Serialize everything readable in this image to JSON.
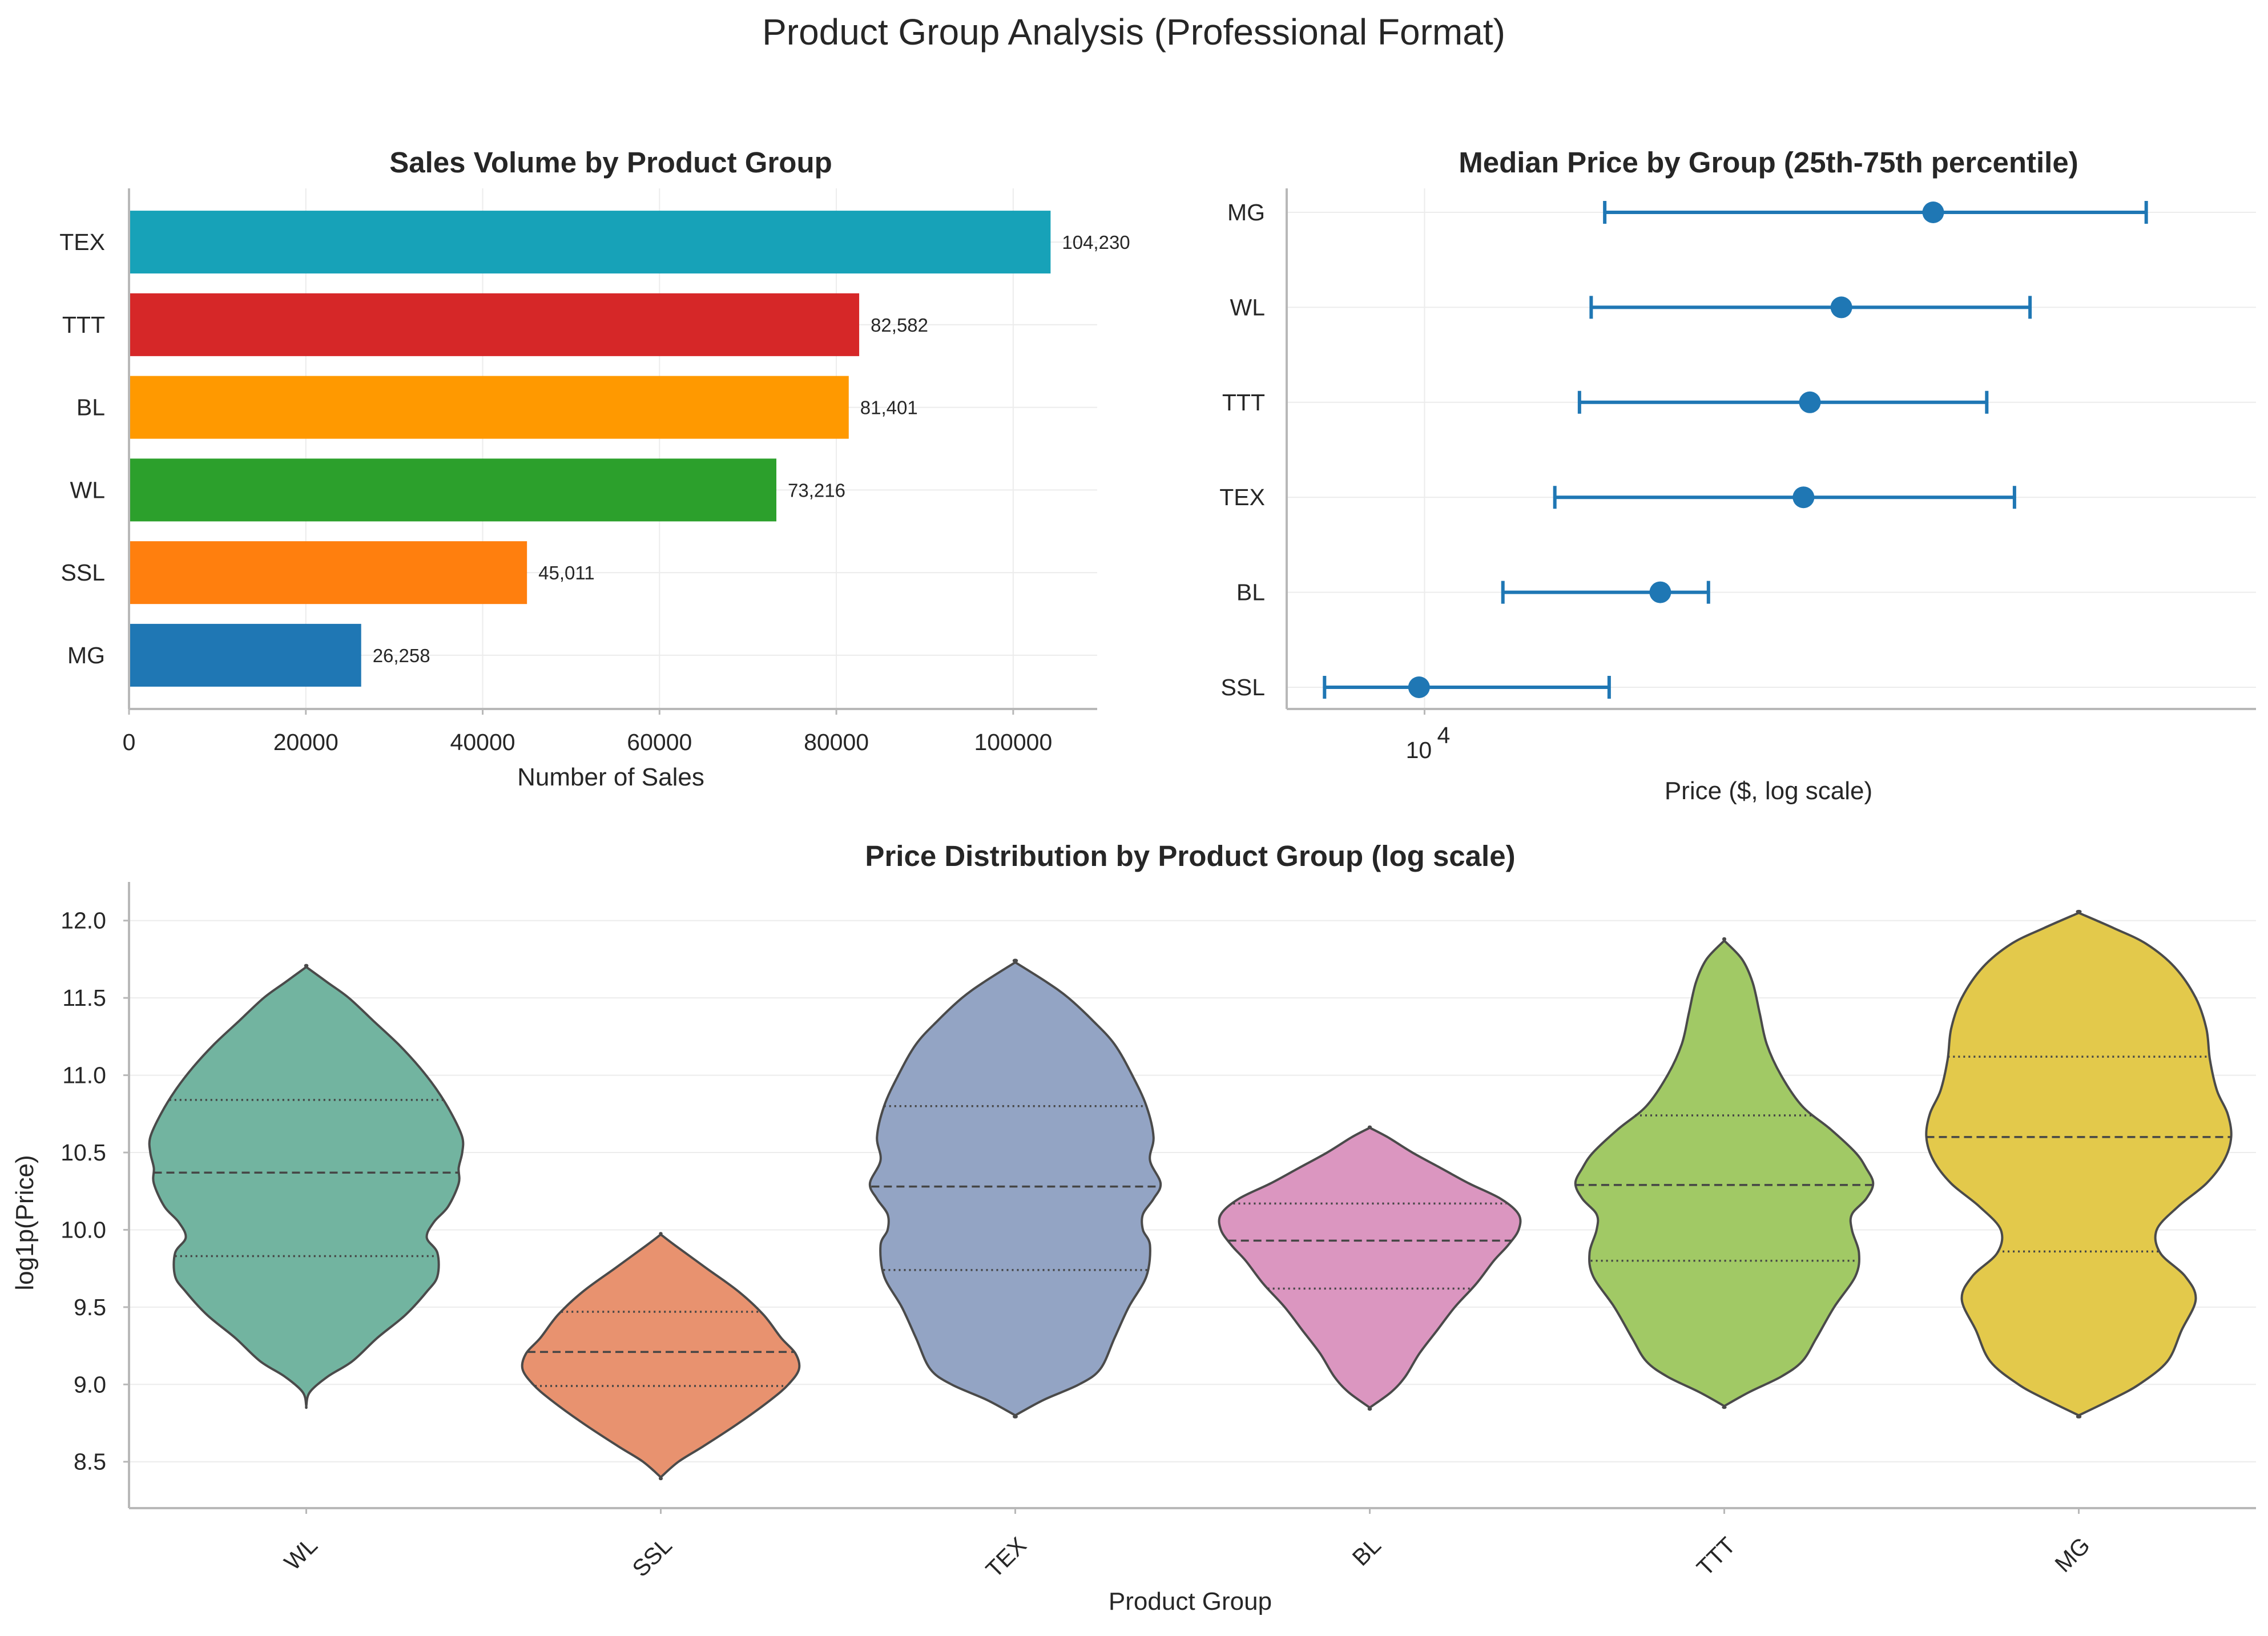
{
  "figure": {
    "suptitle": "Product Group Analysis (Professional Format)"
  },
  "chart_data": [
    {
      "type": "bar",
      "orientation": "horizontal",
      "title": "Sales Volume by Product Group",
      "xlabel": "Number of Sales",
      "ylabel": "",
      "categories": [
        "TEX",
        "TTT",
        "BL",
        "WL",
        "SSL",
        "MG"
      ],
      "values": [
        104230,
        82582,
        81401,
        73216,
        45011,
        26258
      ],
      "value_labels": [
        "104,230",
        "82,582",
        "81,401",
        "73,216",
        "45,011",
        "26,258"
      ],
      "colors": [
        "#17a2b8",
        "#d62728",
        "#ff9900",
        "#2ca02c",
        "#ff7f0e",
        "#1f77b4"
      ],
      "xlim": [
        0,
        109500
      ],
      "xticks": [
        0,
        20000,
        40000,
        60000,
        80000,
        100000
      ],
      "xtick_labels": [
        "0",
        "20000",
        "40000",
        "60000",
        "80000",
        "100000"
      ],
      "grid": true
    },
    {
      "type": "errorbar",
      "title": "Median Price by Group (25th-75th percentile)",
      "xlabel": "Price ($, log scale)",
      "ylabel": "",
      "x_scale": "log",
      "categories": [
        "MG",
        "WL",
        "TTT",
        "TEX",
        "BL",
        "SSL"
      ],
      "median": [
        40400,
        31400,
        28800,
        28300,
        19100,
        9850
      ],
      "q25": [
        16400,
        15800,
        15300,
        14300,
        12400,
        7600
      ],
      "q75": [
        72500,
        52700,
        46800,
        50500,
        21800,
        16600
      ],
      "xlim": [
        6850,
        98000
      ],
      "xticks": [
        10000
      ],
      "xtick_labels": [
        "10",
        "4"
      ],
      "color": "#1f77b4",
      "grid": true
    },
    {
      "type": "violin",
      "title": "Price Distribution by Product Group (log scale)",
      "xlabel": "Product Group",
      "ylabel": "log1p(Price)",
      "categories": [
        "WL",
        "SSL",
        "TEX",
        "BL",
        "TTT",
        "MG"
      ],
      "colors": [
        "#72b4a0",
        "#e8926f",
        "#93a4c4",
        "#db96c0",
        "#a1c965",
        "#e3c94b"
      ],
      "ylim": [
        8.2,
        12.25
      ],
      "yticks": [
        8.5,
        9.0,
        9.5,
        10.0,
        10.5,
        11.0,
        11.5,
        12.0
      ],
      "ytick_labels": [
        "8.5",
        "9.0",
        "9.5",
        "10.0",
        "10.5",
        "11.0",
        "11.5",
        "12.0"
      ],
      "quartiles": [
        [
          9.83,
          10.37,
          10.84
        ],
        [
          8.99,
          9.21,
          9.47
        ],
        [
          9.74,
          10.28,
          10.8
        ],
        [
          9.62,
          9.93,
          10.17
        ],
        [
          9.8,
          10.29,
          10.74
        ],
        [
          9.86,
          10.6,
          11.12
        ]
      ],
      "violin_profiles": [
        {
          "y": [
            8.86,
            8.95,
            9.05,
            9.15,
            9.3,
            9.45,
            9.6,
            9.7,
            9.85,
            9.95,
            10.05,
            10.15,
            10.3,
            10.4,
            10.5,
            10.6,
            10.75,
            10.9,
            11.05,
            11.2,
            11.35,
            11.5,
            11.6,
            11.7
          ],
          "w": [
            0,
            0.01,
            0.06,
            0.13,
            0.2,
            0.28,
            0.34,
            0.37,
            0.37,
            0.34,
            0.36,
            0.4,
            0.43,
            0.43,
            0.44,
            0.44,
            0.41,
            0.37,
            0.32,
            0.26,
            0.19,
            0.12,
            0.06,
            0
          ]
        },
        {
          "y": [
            8.4,
            8.5,
            8.6,
            8.75,
            8.9,
            9.0,
            9.1,
            9.2,
            9.3,
            9.45,
            9.6,
            9.75,
            9.9,
            9.97
          ],
          "w": [
            0,
            0.05,
            0.12,
            0.22,
            0.31,
            0.36,
            0.39,
            0.38,
            0.34,
            0.29,
            0.22,
            0.13,
            0.04,
            0
          ]
        },
        {
          "y": [
            8.8,
            8.9,
            9.0,
            9.1,
            9.3,
            9.5,
            9.7,
            9.9,
            10.0,
            10.1,
            10.2,
            10.3,
            10.45,
            10.6,
            10.8,
            11.0,
            11.2,
            11.35,
            11.5,
            11.6,
            11.73
          ],
          "w": [
            0,
            0.08,
            0.18,
            0.24,
            0.28,
            0.32,
            0.37,
            0.38,
            0.36,
            0.36,
            0.39,
            0.41,
            0.38,
            0.39,
            0.37,
            0.33,
            0.28,
            0.22,
            0.15,
            0.09,
            0
          ]
        },
        {
          "y": [
            8.85,
            8.95,
            9.05,
            9.2,
            9.35,
            9.5,
            9.65,
            9.8,
            9.9,
            10.0,
            10.1,
            10.2,
            10.3,
            10.4,
            10.5,
            10.6,
            10.66
          ],
          "w": [
            0,
            0.06,
            0.1,
            0.14,
            0.19,
            0.24,
            0.3,
            0.35,
            0.39,
            0.42,
            0.42,
            0.37,
            0.28,
            0.2,
            0.12,
            0.05,
            0
          ]
        },
        {
          "y": [
            8.86,
            8.95,
            9.05,
            9.15,
            9.3,
            9.5,
            9.7,
            9.85,
            10.0,
            10.1,
            10.2,
            10.3,
            10.4,
            10.5,
            10.65,
            10.8,
            11.0,
            11.2,
            11.4,
            11.6,
            11.75,
            11.87
          ],
          "w": [
            0,
            0.07,
            0.16,
            0.22,
            0.26,
            0.31,
            0.37,
            0.38,
            0.36,
            0.36,
            0.4,
            0.42,
            0.4,
            0.37,
            0.3,
            0.22,
            0.16,
            0.12,
            0.1,
            0.08,
            0.05,
            0
          ]
        },
        {
          "y": [
            8.8,
            8.9,
            9.0,
            9.15,
            9.35,
            9.55,
            9.7,
            9.85,
            10.0,
            10.15,
            10.3,
            10.45,
            10.6,
            10.75,
            10.9,
            11.1,
            11.3,
            11.5,
            11.7,
            11.85,
            11.95,
            12.05
          ],
          "w": [
            0,
            0.09,
            0.17,
            0.25,
            0.29,
            0.33,
            0.3,
            0.23,
            0.22,
            0.28,
            0.36,
            0.41,
            0.43,
            0.42,
            0.39,
            0.37,
            0.36,
            0.33,
            0.27,
            0.19,
            0.1,
            0
          ]
        }
      ],
      "grid": true
    }
  ]
}
